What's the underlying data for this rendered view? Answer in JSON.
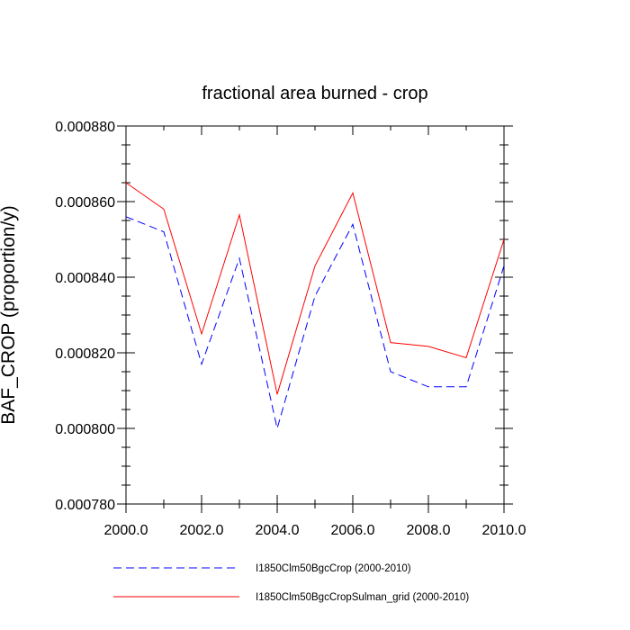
{
  "chart_data": {
    "type": "line",
    "title": "fractional area burned - crop",
    "xlabel": "",
    "ylabel": "BAF_CROP  (proportion/y)",
    "xlim": [
      2000,
      2010
    ],
    "ylim": [
      0.00078,
      0.00088
    ],
    "x_ticks": [
      "2000.0",
      "2002.0",
      "2004.0",
      "2006.0",
      "2008.0",
      "2010.0"
    ],
    "y_ticks": [
      "0.000780",
      "0.000800",
      "0.000820",
      "0.000840",
      "0.000860",
      "0.000880"
    ],
    "grid": false,
    "legend_position": "bottom",
    "x": [
      2000,
      2001,
      2002,
      2003,
      2004,
      2005,
      2006,
      2007,
      2008,
      2009,
      2010
    ],
    "series": [
      {
        "name": "I1850Clm50BgcCrop (2000-2010)",
        "color": "#0000ff",
        "dash": "dashed",
        "values": [
          0.000856,
          0.000852,
          0.000817,
          0.000845,
          0.0008,
          0.000835,
          0.000854,
          0.000815,
          0.000811,
          0.000811,
          0.000843
        ]
      },
      {
        "name": "I1850Clm50BgcCropSulman_grid (2000-2010)",
        "color": "#ff0000",
        "dash": "solid",
        "values": [
          0.000865,
          0.000858,
          0.000825,
          0.0008565,
          0.000809,
          0.000843,
          0.0008623,
          0.0008227,
          0.0008217,
          0.0008187,
          0.00085
        ]
      }
    ]
  }
}
